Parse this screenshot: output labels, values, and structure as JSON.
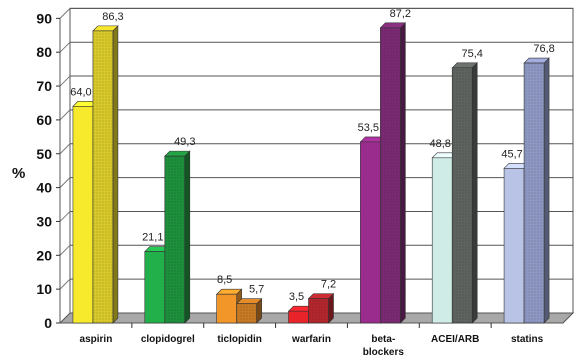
{
  "chart_data": {
    "type": "bar",
    "ylabel": "%",
    "ylim": [
      0,
      90
    ],
    "yticks": [
      "0",
      "10",
      "20",
      "30",
      "40",
      "50",
      "60",
      "70",
      "80",
      "90"
    ],
    "grid": true,
    "categories": [
      {
        "label": "aspirin",
        "label_lines": [
          "aspirin"
        ],
        "values": [
          64.0,
          86.3
        ],
        "value_labels": [
          "64,0",
          "86,3"
        ],
        "colors": [
          "#F7EA2C",
          "#D8C92A"
        ]
      },
      {
        "label": "clopidogrel",
        "label_lines": [
          "clopidogrel"
        ],
        "values": [
          21.1,
          49.3
        ],
        "value_labels": [
          "21,1",
          "49,3"
        ],
        "colors": [
          "#22B04A",
          "#1E8F3C"
        ]
      },
      {
        "label": "ticlopidin",
        "label_lines": [
          "ticlopidin"
        ],
        "values": [
          8.5,
          5.7
        ],
        "value_labels": [
          "8,5",
          "5,7"
        ],
        "colors": [
          "#F2962A",
          "#C77A24"
        ]
      },
      {
        "label": "warfarin",
        "label_lines": [
          "warfarin"
        ],
        "values": [
          3.5,
          7.2
        ],
        "value_labels": [
          "3,5",
          "7,2"
        ],
        "colors": [
          "#E8232A",
          "#B3262E"
        ]
      },
      {
        "label": "beta-blockers",
        "label_lines": [
          "beta-",
          "blockers"
        ],
        "values": [
          53.5,
          87.2
        ],
        "value_labels": [
          "53,5",
          "87,2"
        ],
        "colors": [
          "#9A2C8E",
          "#7A2A72"
        ]
      },
      {
        "label": "ACEI/ARB",
        "label_lines": [
          "ACEI/ARB"
        ],
        "values": [
          48.8,
          75.4
        ],
        "value_labels": [
          "48,8",
          "75,4"
        ],
        "colors": [
          "#CFEDE6",
          "#5E6360"
        ]
      },
      {
        "label": "statins",
        "label_lines": [
          "statins"
        ],
        "values": [
          45.7,
          76.8
        ],
        "value_labels": [
          "45,7",
          "76,8"
        ],
        "colors": [
          "#B9C3E6",
          "#8E97C2"
        ]
      }
    ]
  }
}
